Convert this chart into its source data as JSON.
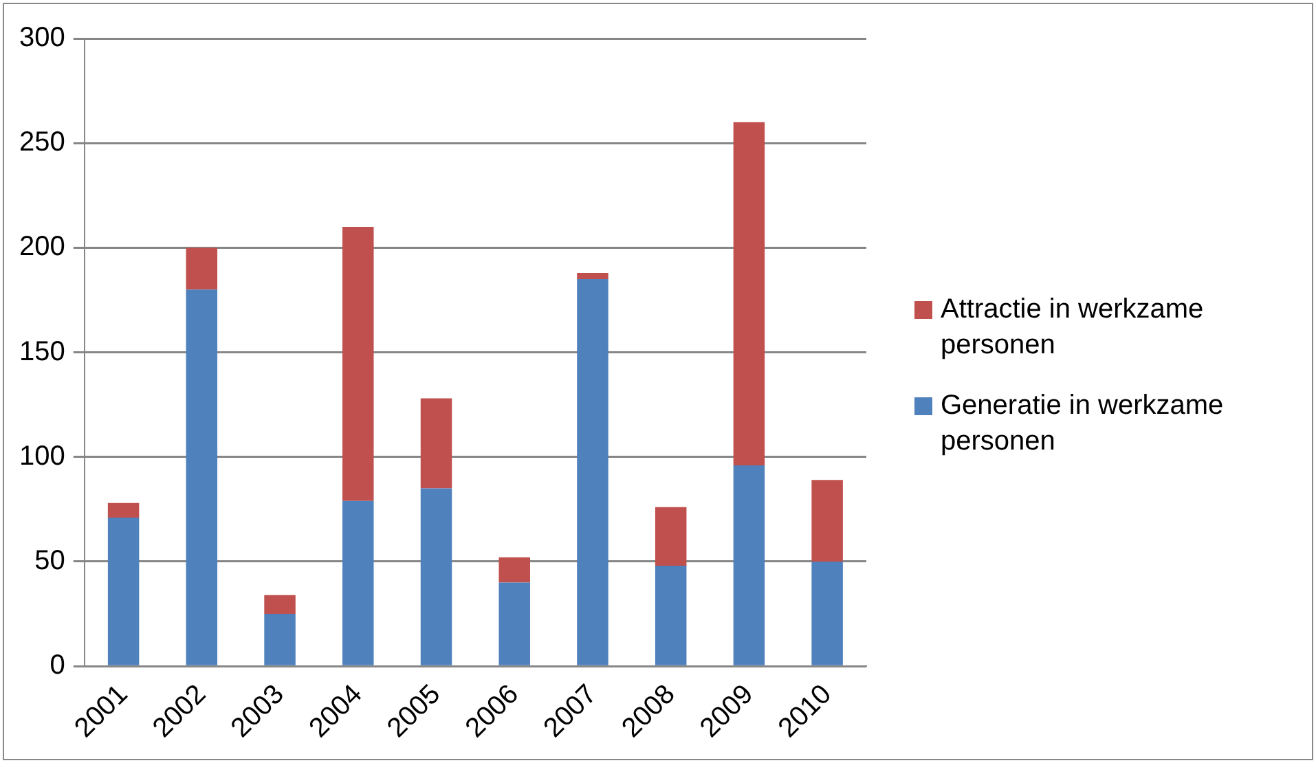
{
  "chart_data": {
    "type": "bar",
    "stacked": true,
    "categories": [
      "2001",
      "2002",
      "2003",
      "2004",
      "2005",
      "2006",
      "2007",
      "2008",
      "2009",
      "2010"
    ],
    "series": [
      {
        "name": "Generatie in werkzame personen",
        "color": "#4f81bd",
        "values": [
          71,
          180,
          25,
          79,
          85,
          40,
          185,
          48,
          96,
          50
        ]
      },
      {
        "name": "Attractie in werkzame personen",
        "color": "#c0504d",
        "values": [
          7,
          20,
          9,
          131,
          43,
          12,
          3,
          28,
          164,
          39
        ]
      }
    ],
    "ylim": [
      0,
      300
    ],
    "yticks": [
      0,
      50,
      100,
      150,
      200,
      250,
      300
    ],
    "grid": "y",
    "legend": "right"
  }
}
